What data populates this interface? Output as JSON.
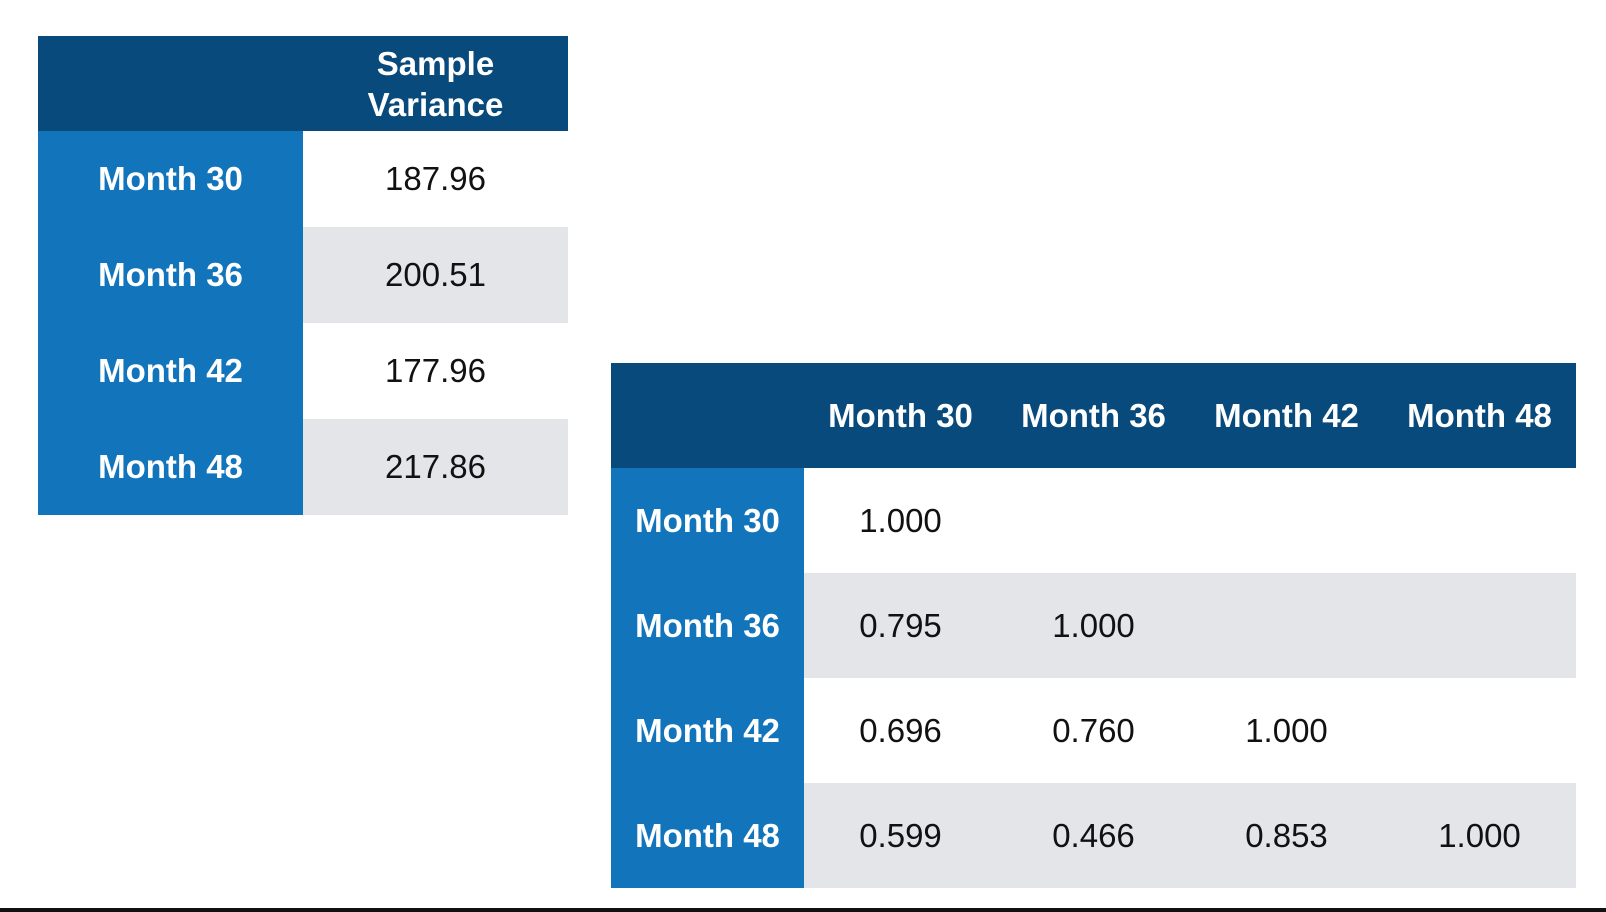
{
  "chart_data": [
    {
      "type": "table",
      "columns": [
        "Sample Variance"
      ],
      "rows": [
        {
          "label": "Month 30",
          "values": [
            "187.96"
          ]
        },
        {
          "label": "Month 36",
          "values": [
            "200.51"
          ]
        },
        {
          "label": "Month 42",
          "values": [
            "177.96"
          ]
        },
        {
          "label": "Month 48",
          "values": [
            "217.86"
          ]
        }
      ]
    },
    {
      "type": "table",
      "columns": [
        "Month 30",
        "Month 36",
        "Month 42",
        "Month 48"
      ],
      "rows": [
        {
          "label": "Month 30",
          "values": [
            "1.000",
            "",
            "",
            ""
          ]
        },
        {
          "label": "Month 36",
          "values": [
            "0.795",
            "1.000",
            "",
            ""
          ]
        },
        {
          "label": "Month 42",
          "values": [
            "0.696",
            "0.760",
            "1.000",
            ""
          ]
        },
        {
          "label": "Month 48",
          "values": [
            "0.599",
            "0.466",
            "0.853",
            "1.000"
          ]
        }
      ]
    }
  ],
  "colors": {
    "header_dark_blue": "#084a7c",
    "row_header_blue": "#1274ba",
    "band_gray": "#e4e5e8",
    "band_white": "#ffffff"
  }
}
